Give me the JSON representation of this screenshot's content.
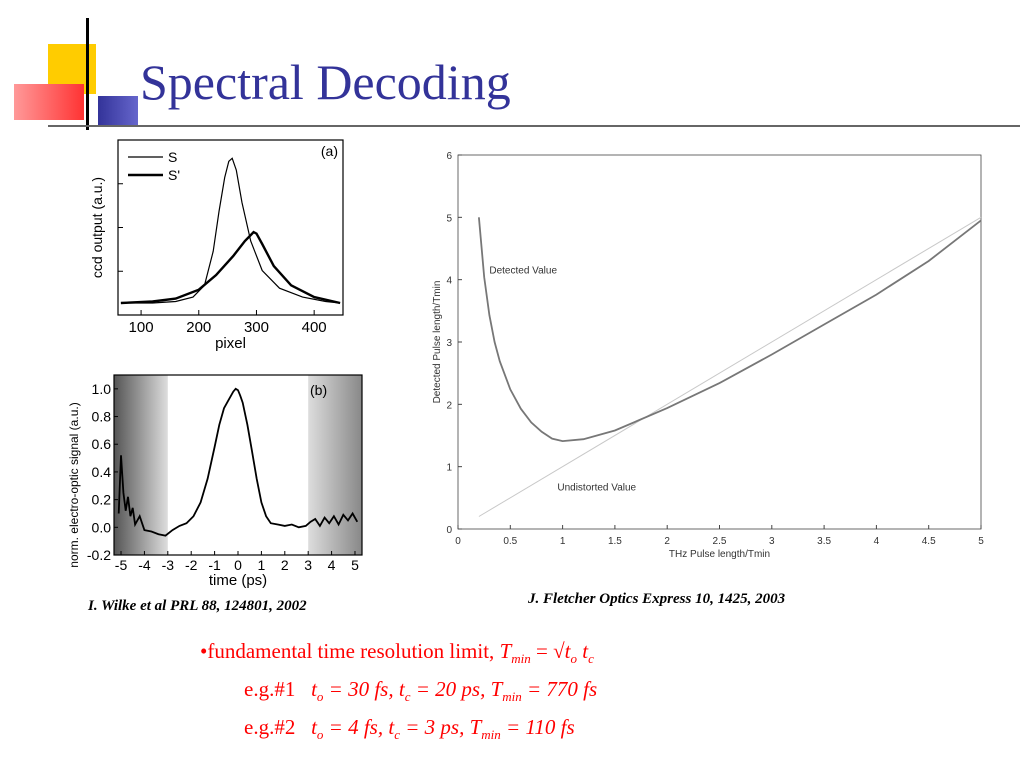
{
  "slide": {
    "title": "Spectral Decoding",
    "colors": {
      "title": "#333399",
      "accent_yellow": "#ffcc00",
      "accent_red": "#ff3333",
      "accent_blue": "#333399",
      "note": "#ff0000"
    }
  },
  "captions": {
    "left": "I. Wilke et al PRL 88, 124801, 2002",
    "right": "J. Fletcher Optics Express  10, 1425, 2003"
  },
  "notes": {
    "line1": {
      "prefix": "•fundamental time resolution limit, ",
      "T": "T",
      "min": "min",
      "eq": " = √",
      "t": "t",
      "o": "o",
      "c": "c"
    },
    "line2": {
      "label": "e.g.#1",
      "to_val": " = 30 fs, ",
      "tc_val": " = 20 ps,  ",
      "tmin_val": " = 770 fs"
    },
    "line3": {
      "label": "e.g.#2",
      "to_val": " = 4 fs,   ",
      "tc_val": " = 3 ps,    ",
      "tmin_val": " = 110 fs"
    }
  },
  "chart_data": [
    {
      "type": "line",
      "panel": "(a)",
      "xlabel": "pixel",
      "ylabel": "ccd output (a.u.)",
      "xticks": [
        100,
        200,
        300,
        400
      ],
      "xlim": [
        60,
        450
      ],
      "ylim": [
        0,
        1.05
      ],
      "legend_position": "top-left",
      "series": [
        {
          "name": "S",
          "x": [
            65,
            120,
            160,
            190,
            210,
            225,
            235,
            245,
            252,
            258,
            265,
            275,
            290,
            310,
            340,
            380,
            420,
            445
          ],
          "y": [
            0.0,
            0.0,
            0.01,
            0.04,
            0.12,
            0.35,
            0.62,
            0.85,
            0.96,
            0.98,
            0.9,
            0.68,
            0.42,
            0.22,
            0.1,
            0.04,
            0.01,
            0.0
          ]
        },
        {
          "name": "S'",
          "x": [
            65,
            120,
            160,
            200,
            230,
            260,
            280,
            295,
            300,
            310,
            330,
            360,
            400,
            445
          ],
          "y": [
            0.0,
            0.01,
            0.03,
            0.09,
            0.19,
            0.32,
            0.42,
            0.48,
            0.47,
            0.4,
            0.25,
            0.12,
            0.04,
            0.0
          ]
        }
      ]
    },
    {
      "type": "line",
      "panel": "(b)",
      "xlabel": "time (ps)",
      "ylabel": "norm. electro-optic signal (a.u.)",
      "xticks": [
        -5,
        -4,
        -3,
        -2,
        -1,
        0,
        1,
        2,
        3,
        4,
        5
      ],
      "yticks": [
        -0.2,
        0.0,
        0.2,
        0.4,
        0.6,
        0.8,
        1.0
      ],
      "xlim": [
        -5.3,
        5.3
      ],
      "ylim": [
        -0.2,
        1.1
      ],
      "series": [
        {
          "name": "signal",
          "x": [
            -5.1,
            -5.0,
            -4.9,
            -4.8,
            -4.7,
            -4.6,
            -4.5,
            -4.4,
            -4.2,
            -4.0,
            -3.7,
            -3.4,
            -3.1,
            -2.8,
            -2.5,
            -2.2,
            -1.9,
            -1.6,
            -1.3,
            -1.0,
            -0.8,
            -0.6,
            -0.4,
            -0.2,
            -0.1,
            0.0,
            0.1,
            0.2,
            0.4,
            0.6,
            0.8,
            1.0,
            1.2,
            1.4,
            1.7,
            2.0,
            2.3,
            2.6,
            2.9,
            3.1,
            3.3,
            3.5,
            3.7,
            3.9,
            4.1,
            4.3,
            4.5,
            4.7,
            4.9,
            5.1
          ],
          "y": [
            0.1,
            0.52,
            0.25,
            0.12,
            0.22,
            0.08,
            0.14,
            0.02,
            0.08,
            -0.02,
            -0.03,
            -0.05,
            -0.06,
            -0.02,
            0.01,
            0.03,
            0.08,
            0.18,
            0.35,
            0.58,
            0.74,
            0.86,
            0.92,
            0.98,
            1.0,
            0.99,
            0.95,
            0.9,
            0.74,
            0.55,
            0.35,
            0.18,
            0.08,
            0.03,
            0.02,
            0.01,
            0.02,
            0.0,
            0.01,
            0.04,
            0.06,
            0.01,
            0.07,
            0.03,
            0.08,
            0.02,
            0.09,
            0.05,
            0.1,
            0.04
          ]
        }
      ]
    },
    {
      "type": "line",
      "xlabel": "THz Pulse length/Tmin",
      "ylabel": "Detected Pulse length/Tmin",
      "xticks": [
        0,
        0.5,
        1,
        1.5,
        2,
        2.5,
        3,
        3.5,
        4,
        4.5,
        5
      ],
      "yticks": [
        0,
        1,
        2,
        3,
        4,
        5,
        6
      ],
      "xlim": [
        0,
        5
      ],
      "ylim": [
        0,
        6
      ],
      "annotations": [
        "Detected Value",
        "Undistorted Value"
      ],
      "series": [
        {
          "name": "Detected Value",
          "x": [
            0.2,
            0.25,
            0.3,
            0.35,
            0.4,
            0.5,
            0.6,
            0.7,
            0.8,
            0.9,
            1.0,
            1.2,
            1.5,
            2.0,
            2.5,
            3.0,
            3.5,
            4.0,
            4.5,
            5.0
          ],
          "y": [
            5.0,
            4.04,
            3.43,
            3.0,
            2.69,
            2.24,
            1.93,
            1.71,
            1.56,
            1.45,
            1.41,
            1.44,
            1.58,
            1.94,
            2.34,
            2.8,
            3.28,
            3.76,
            4.3,
            4.95
          ]
        },
        {
          "name": "Undistorted Value",
          "x": [
            0.2,
            5.0
          ],
          "y": [
            0.2,
            5.0
          ]
        }
      ]
    }
  ]
}
